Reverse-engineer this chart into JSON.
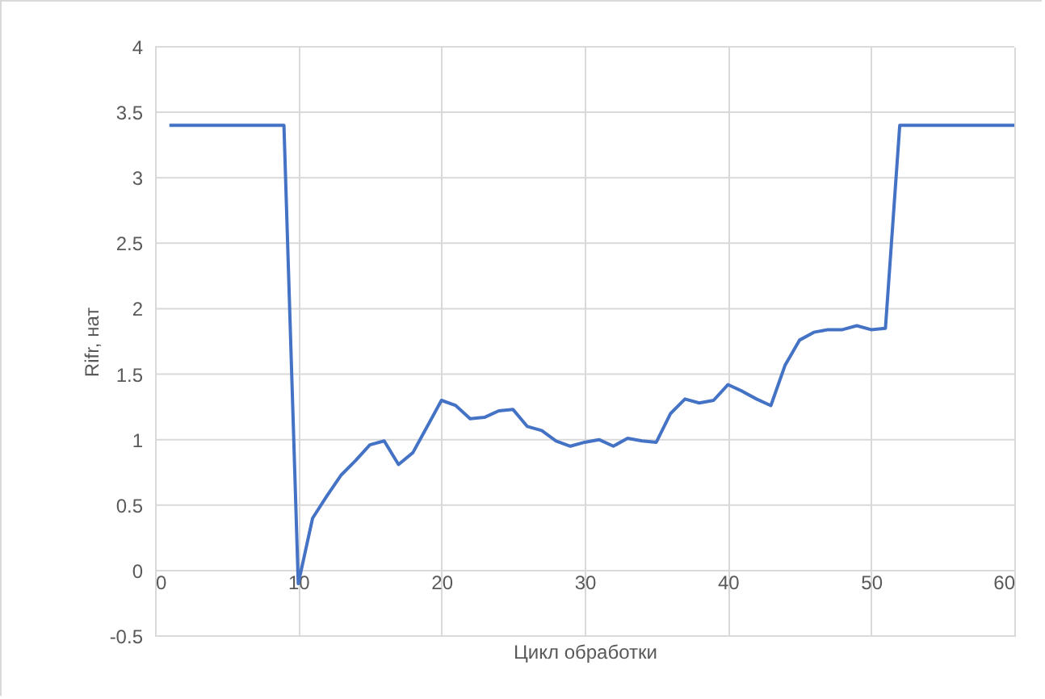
{
  "chart_data": {
    "type": "line",
    "xlabel": "Цикл обработки",
    "ylabel": "Rifr, нат",
    "x": [
      1,
      2,
      3,
      4,
      5,
      6,
      7,
      8,
      9,
      10,
      11,
      12,
      13,
      14,
      15,
      16,
      17,
      18,
      19,
      20,
      21,
      22,
      23,
      24,
      25,
      26,
      27,
      28,
      29,
      30,
      31,
      32,
      33,
      34,
      35,
      36,
      37,
      38,
      39,
      40,
      41,
      42,
      43,
      44,
      45,
      46,
      47,
      48,
      49,
      50,
      51,
      52,
      53,
      54,
      55,
      56,
      57,
      58,
      59,
      60
    ],
    "series": [
      {
        "color": "#4472c4",
        "values": [
          3.4,
          3.4,
          3.4,
          3.4,
          3.4,
          3.4,
          3.4,
          3.4,
          3.4,
          -0.1,
          0.4,
          0.57,
          0.73,
          0.84,
          0.96,
          0.99,
          0.81,
          0.9,
          1.1,
          1.3,
          1.26,
          1.16,
          1.17,
          1.22,
          1.23,
          1.1,
          1.07,
          0.99,
          0.95,
          0.98,
          1.0,
          0.95,
          1.01,
          0.99,
          0.98,
          1.2,
          1.31,
          1.28,
          1.3,
          1.42,
          1.37,
          1.31,
          1.26,
          1.57,
          1.76,
          1.82,
          1.84,
          1.84,
          1.87,
          1.84,
          1.85,
          3.4,
          3.4,
          3.4,
          3.4,
          3.4,
          3.4,
          3.4,
          3.4,
          3.4
        ]
      }
    ],
    "xlim": [
      0,
      60
    ],
    "xticks": [
      0,
      10,
      20,
      30,
      40,
      50,
      60
    ],
    "ylim": [
      -0.5,
      4
    ],
    "yticks": [
      -0.5,
      0,
      0.5,
      1,
      1.5,
      2,
      2.5,
      3,
      3.5,
      4
    ],
    "grid": true,
    "marker": "none",
    "line_style": "solid"
  }
}
